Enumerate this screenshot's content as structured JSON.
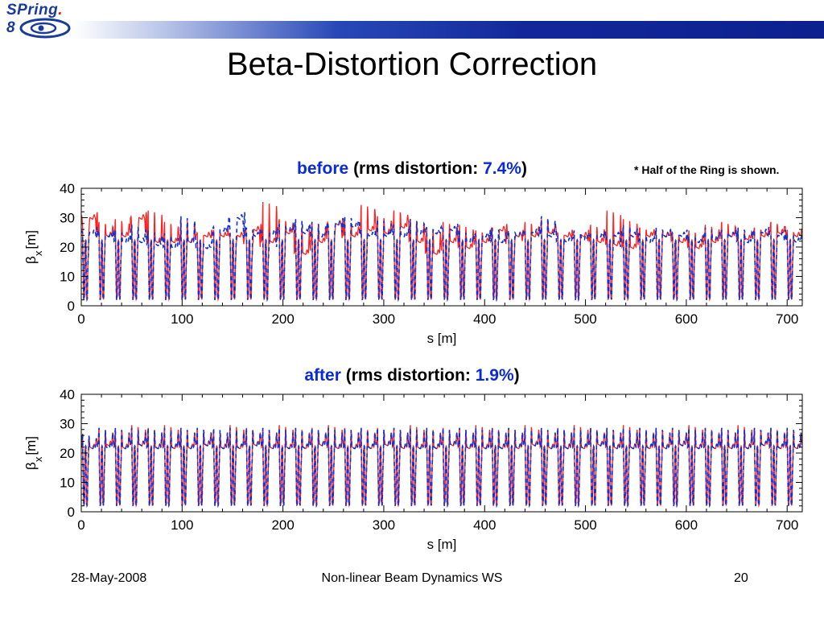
{
  "header": {
    "logo_text": "SPring",
    "logo_suffix": "8",
    "title": "Beta-Distortion Correction",
    "note": "* Half of the Ring is shown."
  },
  "footer": {
    "date": "28-May-2008",
    "event": "Non-linear Beam Dynamics WS",
    "page": "20"
  },
  "colors": {
    "corrected_series": "#ff2020",
    "reference_series": "#1030d0",
    "accent": "#0a2ad8"
  },
  "chart_data": [
    {
      "type": "line",
      "title_prefix": "before",
      "title_middle": " (rms distortion: ",
      "title_value": "7.4%",
      "title_suffix": ")",
      "xlabel": "s [m]",
      "ylabel": "β",
      "ylabel_sub": "x",
      "ylabel_unit": "[m]",
      "xlim": [
        0,
        715
      ],
      "ylim": [
        0,
        40
      ],
      "xticks": [
        "0",
        "100",
        "200",
        "300",
        "400",
        "500",
        "600",
        "700"
      ],
      "yticks": [
        "0",
        "10",
        "20",
        "30",
        "40"
      ],
      "rms_distortion_percent": 7.4,
      "series": [
        {
          "style": "solid",
          "color": "#ff2020",
          "cells": [
            [
              27,
              30
            ],
            [
              29,
              24
            ],
            [
              30,
              24
            ],
            [
              27,
              30
            ],
            [
              33,
              22
            ],
            [
              29,
              22
            ],
            [
              30,
              22
            ],
            [
              25,
              24
            ],
            [
              26,
              24
            ],
            [
              23,
              24
            ],
            [
              22,
              26
            ],
            [
              36,
              22
            ],
            [
              30,
              25
            ],
            [
              28,
              18
            ],
            [
              29,
              22
            ],
            [
              25,
              28
            ],
            [
              29,
              24
            ],
            [
              35,
              26
            ],
            [
              31,
              25
            ],
            [
              33,
              27
            ],
            [
              30,
              22
            ],
            [
              27,
              18
            ],
            [
              29,
              22
            ],
            [
              28,
              20
            ],
            [
              26,
              22
            ],
            [
              23,
              26
            ],
            [
              24,
              24
            ],
            [
              29,
              24
            ],
            [
              30,
              25
            ],
            [
              25,
              24
            ],
            [
              24,
              24
            ],
            [
              28,
              22
            ],
            [
              33,
              21
            ],
            [
              30,
              20
            ],
            [
              27,
              24
            ],
            [
              26,
              24
            ],
            [
              25,
              22
            ],
            [
              26,
              20
            ],
            [
              28,
              22
            ],
            [
              29,
              24
            ],
            [
              26,
              23
            ],
            [
              27,
              24
            ],
            [
              29,
              25
            ],
            [
              26,
              24
            ]
          ]
        },
        {
          "style": "dashed",
          "color": "#1030d0",
          "cells": [
            [
              25,
              25
            ],
            [
              25,
              24
            ],
            [
              26,
              22
            ],
            [
              28,
              22
            ],
            [
              26,
              21
            ],
            [
              25,
              20
            ],
            [
              31,
              22
            ],
            [
              22,
              20
            ],
            [
              27,
              26
            ],
            [
              25,
              30
            ],
            [
              27,
              24
            ],
            [
              22,
              25
            ],
            [
              28,
              26
            ],
            [
              30,
              25
            ],
            [
              29,
              24
            ],
            [
              27,
              28
            ],
            [
              31,
              27
            ],
            [
              26,
              24
            ],
            [
              30,
              24
            ],
            [
              28,
              24
            ],
            [
              30,
              25
            ],
            [
              27,
              25
            ],
            [
              26,
              26
            ],
            [
              26,
              22
            ],
            [
              24,
              24
            ],
            [
              27,
              22
            ],
            [
              26,
              24
            ],
            [
              26,
              25
            ],
            [
              31,
              24
            ],
            [
              24,
              22
            ],
            [
              26,
              23
            ],
            [
              25,
              24
            ],
            [
              22,
              24
            ],
            [
              28,
              24
            ],
            [
              25,
              22
            ],
            [
              27,
              24
            ],
            [
              25,
              24
            ],
            [
              24,
              22
            ],
            [
              27,
              23
            ],
            [
              26,
              24
            ],
            [
              27,
              22
            ],
            [
              26,
              25
            ],
            [
              24,
              24
            ],
            [
              25,
              22
            ]
          ]
        }
      ]
    },
    {
      "type": "line",
      "title_prefix": "after",
      "title_middle": " (rms distortion: ",
      "title_value": "1.9%",
      "title_suffix": ")",
      "xlabel": "s [m]",
      "ylabel": "β",
      "ylabel_sub": "x",
      "ylabel_unit": "[m]",
      "xlim": [
        0,
        715
      ],
      "ylim": [
        0,
        40
      ],
      "xticks": [
        "0",
        "100",
        "200",
        "300",
        "400",
        "500",
        "600",
        "700"
      ],
      "yticks": [
        "0",
        "10",
        "20",
        "30",
        "40"
      ],
      "rms_distortion_percent": 1.9,
      "series": [
        {
          "style": "solid",
          "color": "#ff2020",
          "cells": [
            [
              27,
              22
            ],
            [
              29,
              23
            ],
            [
              29,
              22
            ],
            [
              30,
              23
            ],
            [
              29,
              22
            ],
            [
              30,
              22
            ],
            [
              29,
              22
            ],
            [
              29,
              23
            ],
            [
              28,
              22
            ],
            [
              30,
              22
            ],
            [
              29,
              23
            ],
            [
              29,
              22
            ],
            [
              30,
              22
            ],
            [
              29,
              22
            ],
            [
              29,
              23
            ],
            [
              30,
              22
            ],
            [
              29,
              22
            ],
            [
              29,
              22
            ],
            [
              29,
              23
            ],
            [
              29,
              22
            ],
            [
              30,
              22
            ],
            [
              29,
              22
            ],
            [
              29,
              23
            ],
            [
              29,
              22
            ],
            [
              30,
              22
            ],
            [
              29,
              22
            ],
            [
              29,
              22
            ],
            [
              30,
              23
            ],
            [
              29,
              22
            ],
            [
              29,
              22
            ],
            [
              30,
              22
            ],
            [
              29,
              23
            ],
            [
              29,
              22
            ],
            [
              30,
              22
            ],
            [
              29,
              22
            ],
            [
              29,
              22
            ],
            [
              29,
              23
            ],
            [
              30,
              22
            ],
            [
              29,
              22
            ],
            [
              29,
              22
            ],
            [
              30,
              22
            ],
            [
              29,
              23
            ],
            [
              29,
              22
            ],
            [
              29,
              22
            ]
          ]
        },
        {
          "style": "dashed",
          "color": "#1030d0",
          "cells": [
            [
              27,
              22
            ],
            [
              29,
              22
            ],
            [
              29,
              22
            ],
            [
              29,
              23
            ],
            [
              29,
              22
            ],
            [
              29,
              22
            ],
            [
              29,
              22
            ],
            [
              29,
              23
            ],
            [
              29,
              22
            ],
            [
              29,
              22
            ],
            [
              29,
              23
            ],
            [
              29,
              22
            ],
            [
              29,
              22
            ],
            [
              29,
              22
            ],
            [
              29,
              23
            ],
            [
              29,
              22
            ],
            [
              29,
              22
            ],
            [
              29,
              22
            ],
            [
              29,
              23
            ],
            [
              29,
              22
            ],
            [
              29,
              22
            ],
            [
              29,
              22
            ],
            [
              29,
              23
            ],
            [
              29,
              22
            ],
            [
              29,
              22
            ],
            [
              29,
              22
            ],
            [
              29,
              22
            ],
            [
              29,
              23
            ],
            [
              29,
              22
            ],
            [
              29,
              22
            ],
            [
              29,
              22
            ],
            [
              29,
              23
            ],
            [
              29,
              22
            ],
            [
              29,
              22
            ],
            [
              29,
              22
            ],
            [
              29,
              22
            ],
            [
              29,
              23
            ],
            [
              29,
              22
            ],
            [
              29,
              22
            ],
            [
              29,
              22
            ],
            [
              29,
              22
            ],
            [
              29,
              23
            ],
            [
              29,
              22
            ],
            [
              29,
              22
            ]
          ]
        }
      ]
    }
  ]
}
